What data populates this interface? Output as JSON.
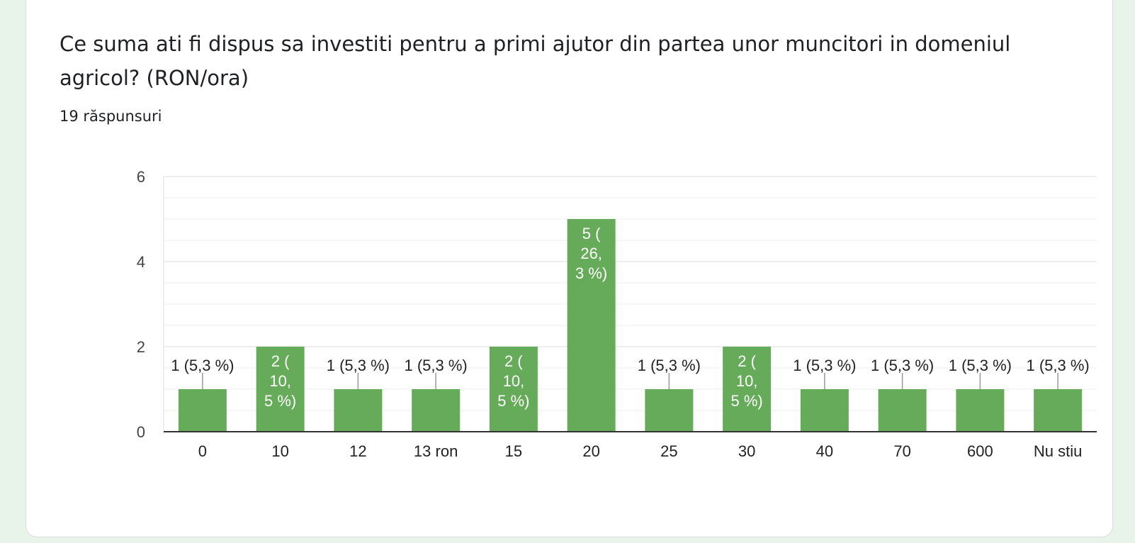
{
  "question": {
    "title": "Ce suma ati fi dispus sa investiti pentru a primi ajutor din partea unor muncitori in domeniul agricol? (RON/ora)",
    "responses": "19 răspunsuri"
  },
  "colors": {
    "bar": "#66ab5a",
    "page_background": "#e8f4ea",
    "inside_label": "#ffffff",
    "outside_label": "#222222",
    "leader_line": "#999999",
    "axis": "#333333",
    "gridline": "#eeeeee"
  },
  "chart_data": {
    "type": "bar",
    "title": "",
    "xlabel": "",
    "ylabel": "",
    "ylim": [
      0,
      6
    ],
    "yticks": [
      "0",
      "2",
      "4",
      "6"
    ],
    "grid": true,
    "categories": [
      "0",
      "10",
      "12",
      "13 ron",
      "15",
      "20",
      "25",
      "30",
      "40",
      "70",
      "600",
      "Nu stiu"
    ],
    "values": [
      1,
      2,
      1,
      1,
      2,
      5,
      1,
      2,
      1,
      1,
      1,
      1
    ],
    "labels": [
      "1 (5,3 %)",
      "2 ( 10, 5 %)",
      "1 (5,3 %)",
      "1 (5,3 %)",
      "2 ( 10, 5 %)",
      "5 ( 26, 3 %)",
      "1 (5,3 %)",
      "2 ( 10, 5 %)",
      "1 (5,3 %)",
      "1 (5,3 %)",
      "1 (5,3 %)",
      "1 (5,3 %)"
    ]
  }
}
